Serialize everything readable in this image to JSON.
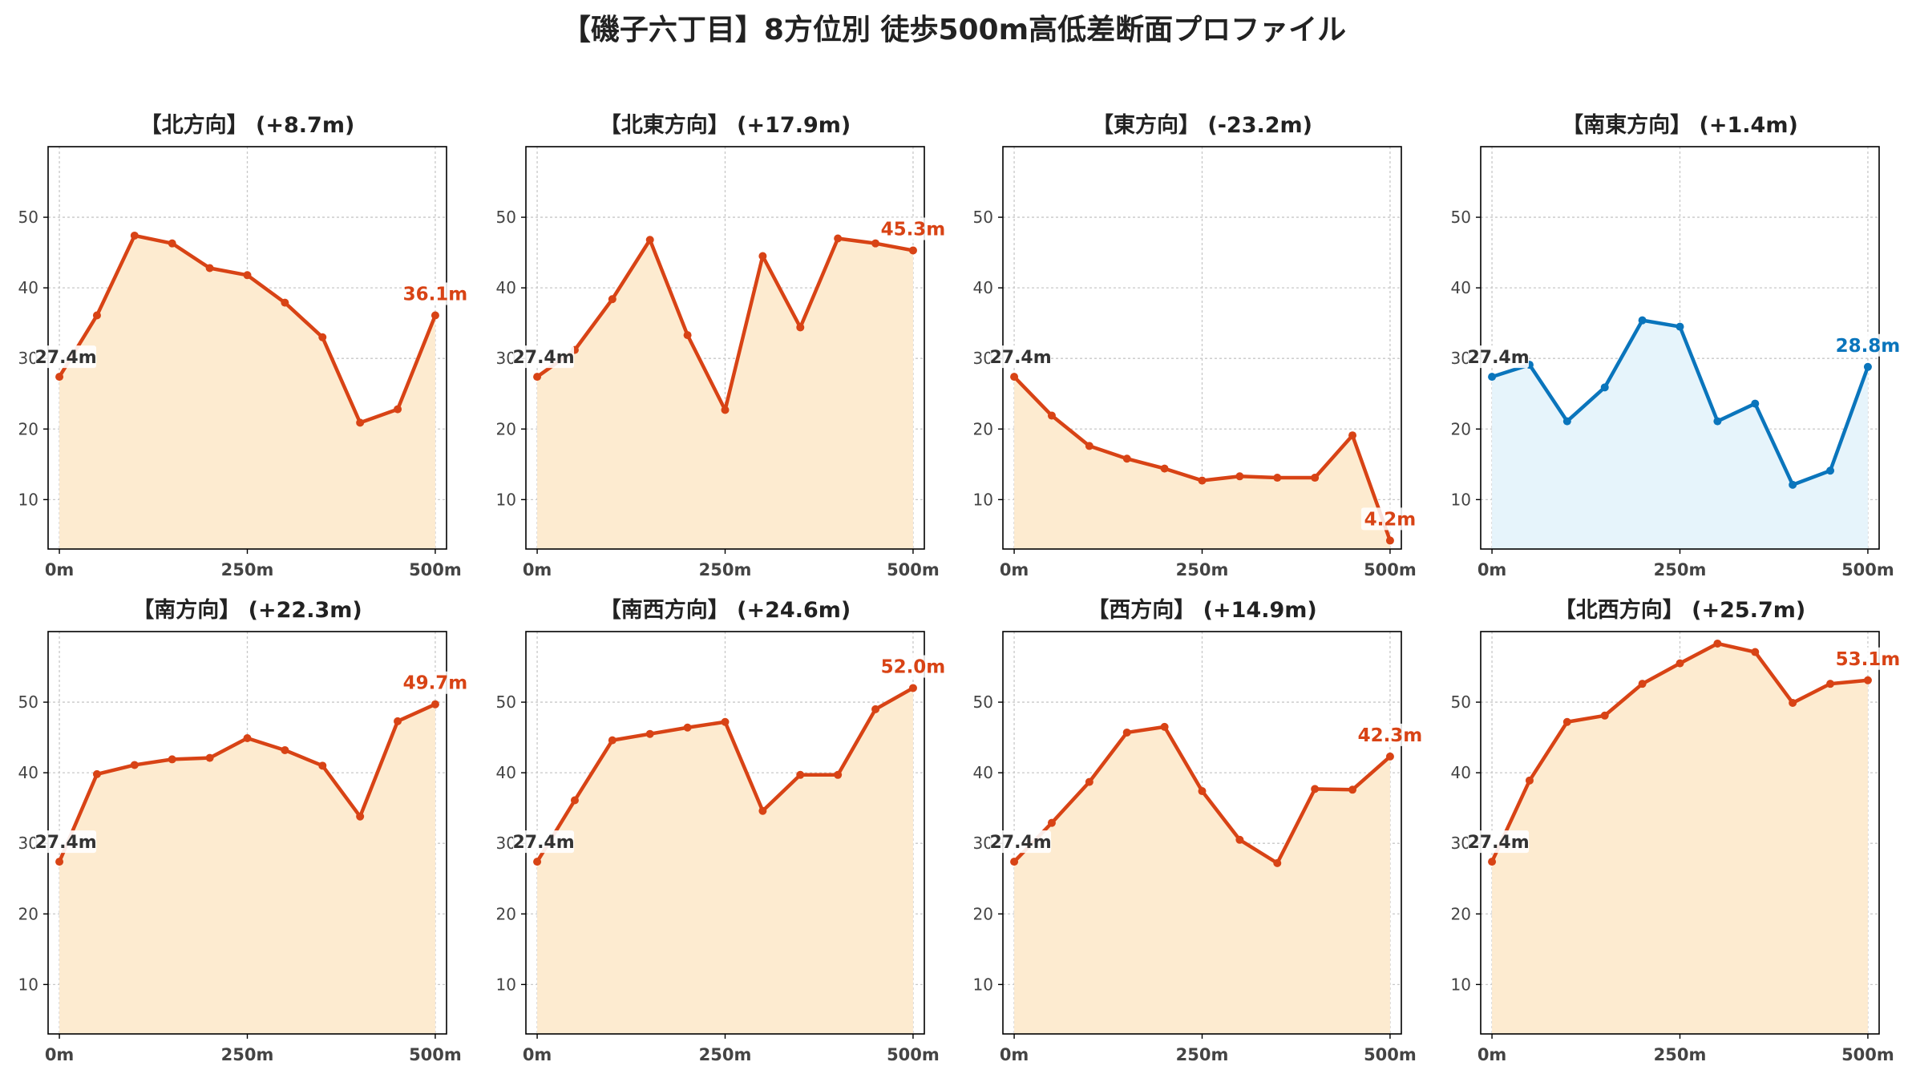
{
  "figure": {
    "title": "【磯子六丁目】8方位別 徒歩500m高低差断面プロファイル"
  },
  "colors": {
    "rise_line": "#d84315",
    "rise_fill": "#fdebd0",
    "flat_line": "#0a75bc",
    "flat_fill": "#e6f4fb",
    "grid": "#c8c8c8",
    "axis": "#000000",
    "tick_label": "#444444",
    "title": "#222222",
    "start_label": "#333333"
  },
  "chart_data": [
    {
      "type": "area",
      "title": "【北方向】 (+8.7m)",
      "x": [
        0,
        50,
        100,
        150,
        200,
        250,
        300,
        350,
        400,
        450,
        500
      ],
      "values": [
        27.4,
        36.1,
        47.4,
        46.3,
        42.8,
        41.8,
        37.9,
        33.0,
        20.9,
        22.8,
        36.1
      ],
      "start_label": "27.4m",
      "end_label": "36.1m",
      "color_scheme": "rise",
      "xticks": [
        0,
        250,
        500
      ],
      "xtick_labels": [
        "0m",
        "250m",
        "500m"
      ],
      "yticks": [
        10,
        20,
        30,
        40,
        50
      ],
      "ytick_labels": [
        "10",
        "20",
        "30",
        "40",
        "50"
      ],
      "xlim": [
        -15,
        515
      ],
      "ylim": [
        3,
        60
      ],
      "grid": true
    },
    {
      "type": "area",
      "title": "【北東方向】 (+17.9m)",
      "x": [
        0,
        50,
        100,
        150,
        200,
        250,
        300,
        350,
        400,
        450,
        500
      ],
      "values": [
        27.4,
        31.2,
        38.4,
        46.8,
        33.3,
        22.7,
        44.5,
        34.4,
        47.0,
        46.3,
        45.3
      ],
      "start_label": "27.4m",
      "end_label": "45.3m",
      "color_scheme": "rise",
      "xticks": [
        0,
        250,
        500
      ],
      "xtick_labels": [
        "0m",
        "250m",
        "500m"
      ],
      "yticks": [
        10,
        20,
        30,
        40,
        50
      ],
      "ytick_labels": [
        "10",
        "20",
        "30",
        "40",
        "50"
      ],
      "xlim": [
        -15,
        515
      ],
      "ylim": [
        3,
        60
      ],
      "grid": true
    },
    {
      "type": "area",
      "title": "【東方向】 (-23.2m)",
      "x": [
        0,
        50,
        100,
        150,
        200,
        250,
        300,
        350,
        400,
        450,
        500
      ],
      "values": [
        27.4,
        21.9,
        17.6,
        15.8,
        14.4,
        12.7,
        13.3,
        13.1,
        13.1,
        19.1,
        4.2
      ],
      "start_label": "27.4m",
      "end_label": "4.2m",
      "color_scheme": "rise",
      "xticks": [
        0,
        250,
        500
      ],
      "xtick_labels": [
        "0m",
        "250m",
        "500m"
      ],
      "yticks": [
        10,
        20,
        30,
        40,
        50
      ],
      "ytick_labels": [
        "10",
        "20",
        "30",
        "40",
        "50"
      ],
      "xlim": [
        -15,
        515
      ],
      "ylim": [
        3,
        60
      ],
      "grid": true
    },
    {
      "type": "area",
      "title": "【南東方向】 (+1.4m)",
      "x": [
        0,
        50,
        100,
        150,
        200,
        250,
        300,
        350,
        400,
        450,
        500
      ],
      "values": [
        27.4,
        29.1,
        21.1,
        25.9,
        35.4,
        34.5,
        21.1,
        23.6,
        12.1,
        14.1,
        28.8
      ],
      "start_label": "27.4m",
      "end_label": "28.8m",
      "color_scheme": "flat",
      "xticks": [
        0,
        250,
        500
      ],
      "xtick_labels": [
        "0m",
        "250m",
        "500m"
      ],
      "yticks": [
        10,
        20,
        30,
        40,
        50
      ],
      "ytick_labels": [
        "10",
        "20",
        "30",
        "40",
        "50"
      ],
      "xlim": [
        -15,
        515
      ],
      "ylim": [
        3,
        60
      ],
      "grid": true
    },
    {
      "type": "area",
      "title": "【南方向】 (+22.3m)",
      "x": [
        0,
        50,
        100,
        150,
        200,
        250,
        300,
        350,
        400,
        450,
        500
      ],
      "values": [
        27.4,
        39.8,
        41.1,
        41.9,
        42.1,
        44.9,
        43.2,
        41.0,
        33.8,
        47.3,
        49.7
      ],
      "start_label": "27.4m",
      "end_label": "49.7m",
      "color_scheme": "rise",
      "xticks": [
        0,
        250,
        500
      ],
      "xtick_labels": [
        "0m",
        "250m",
        "500m"
      ],
      "yticks": [
        10,
        20,
        30,
        40,
        50
      ],
      "ytick_labels": [
        "10",
        "20",
        "30",
        "40",
        "50"
      ],
      "xlim": [
        -15,
        515
      ],
      "ylim": [
        3,
        60
      ],
      "grid": true
    },
    {
      "type": "area",
      "title": "【南西方向】 (+24.6m)",
      "x": [
        0,
        50,
        100,
        150,
        200,
        250,
        300,
        350,
        400,
        450,
        500
      ],
      "values": [
        27.4,
        36.1,
        44.6,
        45.5,
        46.4,
        47.2,
        34.6,
        39.7,
        39.7,
        49.0,
        52.0
      ],
      "start_label": "27.4m",
      "end_label": "52.0m",
      "color_scheme": "rise",
      "xticks": [
        0,
        250,
        500
      ],
      "xtick_labels": [
        "0m",
        "250m",
        "500m"
      ],
      "yticks": [
        10,
        20,
        30,
        40,
        50
      ],
      "ytick_labels": [
        "10",
        "20",
        "30",
        "40",
        "50"
      ],
      "xlim": [
        -15,
        515
      ],
      "ylim": [
        3,
        60
      ],
      "grid": true
    },
    {
      "type": "area",
      "title": "【西方向】 (+14.9m)",
      "x": [
        0,
        50,
        100,
        150,
        200,
        250,
        300,
        350,
        400,
        450,
        500
      ],
      "values": [
        27.4,
        32.9,
        38.7,
        45.7,
        46.5,
        37.4,
        30.5,
        27.2,
        37.7,
        37.6,
        42.3
      ],
      "start_label": "27.4m",
      "end_label": "42.3m",
      "color_scheme": "rise",
      "xticks": [
        0,
        250,
        500
      ],
      "xtick_labels": [
        "0m",
        "250m",
        "500m"
      ],
      "yticks": [
        10,
        20,
        30,
        40,
        50
      ],
      "ytick_labels": [
        "10",
        "20",
        "30",
        "40",
        "50"
      ],
      "xlim": [
        -15,
        515
      ],
      "ylim": [
        3,
        60
      ],
      "grid": true
    },
    {
      "type": "area",
      "title": "【北西方向】 (+25.7m)",
      "x": [
        0,
        50,
        100,
        150,
        200,
        250,
        300,
        350,
        400,
        450,
        500
      ],
      "values": [
        27.4,
        38.9,
        47.2,
        48.1,
        52.6,
        55.5,
        58.3,
        57.1,
        49.9,
        52.6,
        53.1
      ],
      "start_label": "27.4m",
      "end_label": "53.1m",
      "color_scheme": "rise",
      "xticks": [
        0,
        250,
        500
      ],
      "xtick_labels": [
        "0m",
        "250m",
        "500m"
      ],
      "yticks": [
        10,
        20,
        30,
        40,
        50
      ],
      "ytick_labels": [
        "10",
        "20",
        "30",
        "40",
        "50"
      ],
      "xlim": [
        -15,
        515
      ],
      "ylim": [
        3,
        60
      ],
      "grid": true
    }
  ]
}
